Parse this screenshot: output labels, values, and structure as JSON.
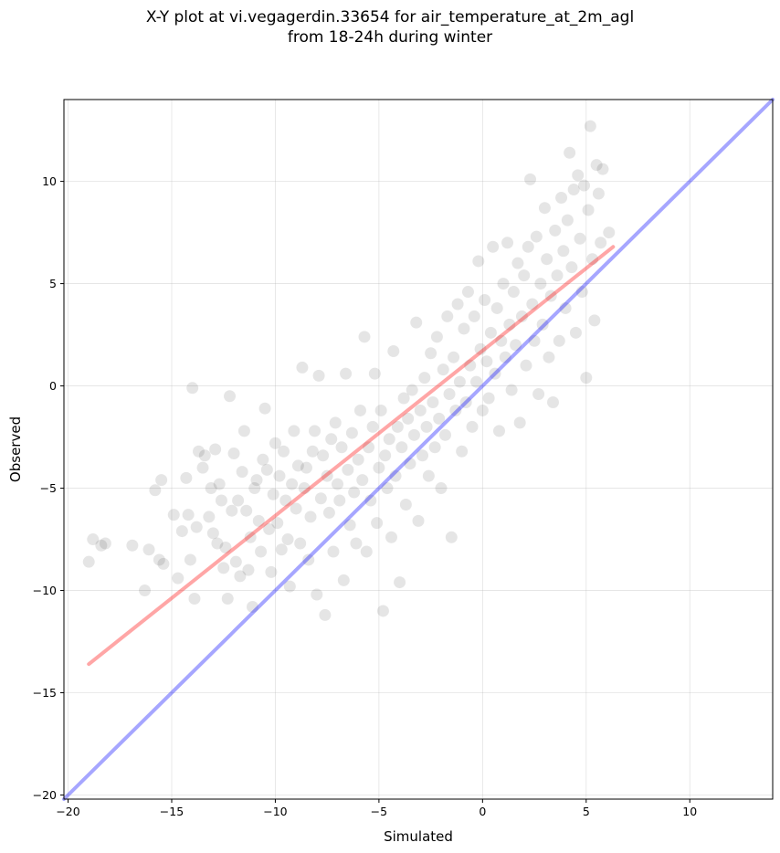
{
  "chart_data": {
    "type": "scatter",
    "title_lines": [
      "X-Y plot at vi.vegagerdin.33654 for air_temperature_at_2m_agl",
      "from 18-24h during winter"
    ],
    "xlabel": "Simulated",
    "ylabel": "Observed",
    "xlim": [
      -20.2,
      14
    ],
    "ylim": [
      -20.2,
      14
    ],
    "x_ticks": [
      -20,
      -15,
      -10,
      -5,
      0,
      5,
      10
    ],
    "y_ticks": [
      -20,
      -15,
      -10,
      -5,
      0,
      5,
      10
    ],
    "x_tick_labels": [
      "−20",
      "−15",
      "−10",
      "−5",
      "0",
      "5",
      "10"
    ],
    "y_tick_labels": [
      "−20",
      "−15",
      "−10",
      "−5",
      "0",
      "5",
      "10"
    ],
    "grid": true,
    "point_color": "#000000",
    "point_opacity": 0.1,
    "lines": [
      {
        "role": "identity",
        "color": "#0000ff",
        "x": [
          -20.2,
          14
        ],
        "y": [
          -20.2,
          14
        ]
      },
      {
        "role": "fit",
        "color": "#ff0000",
        "x": [
          -19,
          6.3
        ],
        "y": [
          -13.6,
          6.8
        ]
      }
    ],
    "points": [
      [
        -19.0,
        -8.6
      ],
      [
        -18.8,
        -7.5
      ],
      [
        -18.4,
        -7.8
      ],
      [
        -18.2,
        -7.7
      ],
      [
        -16.9,
        -7.8
      ],
      [
        -16.3,
        -10.0
      ],
      [
        -16.1,
        -8.0
      ],
      [
        -15.8,
        -5.1
      ],
      [
        -15.6,
        -8.5
      ],
      [
        -15.5,
        -4.6
      ],
      [
        -15.4,
        -8.7
      ],
      [
        -14.9,
        -6.3
      ],
      [
        -14.7,
        -9.4
      ],
      [
        -14.5,
        -7.1
      ],
      [
        -14.3,
        -4.5
      ],
      [
        -14.2,
        -6.3
      ],
      [
        -14.1,
        -8.5
      ],
      [
        -14.0,
        -0.1
      ],
      [
        -13.9,
        -10.4
      ],
      [
        -13.8,
        -6.9
      ],
      [
        -13.7,
        -3.2
      ],
      [
        -13.5,
        -4.0
      ],
      [
        -13.4,
        -3.4
      ],
      [
        -13.2,
        -6.4
      ],
      [
        -13.1,
        -5.0
      ],
      [
        -13.0,
        -7.2
      ],
      [
        -12.9,
        -3.1
      ],
      [
        -12.8,
        -7.7
      ],
      [
        -12.7,
        -4.8
      ],
      [
        -12.6,
        -5.6
      ],
      [
        -12.5,
        -8.9
      ],
      [
        -12.4,
        -7.9
      ],
      [
        -12.3,
        -10.4
      ],
      [
        -12.2,
        -0.5
      ],
      [
        -12.1,
        -6.1
      ],
      [
        -12.0,
        -3.3
      ],
      [
        -11.9,
        -8.6
      ],
      [
        -11.8,
        -5.6
      ],
      [
        -11.7,
        -9.3
      ],
      [
        -11.6,
        -4.2
      ],
      [
        -11.5,
        -2.2
      ],
      [
        -11.4,
        -6.1
      ],
      [
        -11.3,
        -9.0
      ],
      [
        -11.2,
        -7.4
      ],
      [
        -11.1,
        -10.8
      ],
      [
        -11.0,
        -5.0
      ],
      [
        -10.9,
        -4.6
      ],
      [
        -10.8,
        -6.6
      ],
      [
        -10.7,
        -8.1
      ],
      [
        -10.6,
        -3.6
      ],
      [
        -10.5,
        -1.1
      ],
      [
        -10.4,
        -4.1
      ],
      [
        -10.3,
        -7.0
      ],
      [
        -10.2,
        -9.1
      ],
      [
        -10.1,
        -5.3
      ],
      [
        -10.0,
        -2.8
      ],
      [
        -9.9,
        -6.7
      ],
      [
        -9.8,
        -4.4
      ],
      [
        -9.7,
        -8.0
      ],
      [
        -9.6,
        -3.2
      ],
      [
        -9.5,
        -5.6
      ],
      [
        -9.4,
        -7.5
      ],
      [
        -9.3,
        -9.8
      ],
      [
        -9.2,
        -4.8
      ],
      [
        -9.1,
        -2.2
      ],
      [
        -9.0,
        -6.0
      ],
      [
        -8.9,
        -3.9
      ],
      [
        -8.8,
        -7.7
      ],
      [
        -8.7,
        0.9
      ],
      [
        -8.6,
        -5.0
      ],
      [
        -8.5,
        -4.0
      ],
      [
        -8.4,
        -8.5
      ],
      [
        -8.3,
        -6.4
      ],
      [
        -8.2,
        -3.2
      ],
      [
        -8.1,
        -2.2
      ],
      [
        -8.0,
        -10.2
      ],
      [
        -7.9,
        0.5
      ],
      [
        -7.8,
        -5.5
      ],
      [
        -7.7,
        -3.4
      ],
      [
        -7.6,
        -11.2
      ],
      [
        -7.5,
        -4.4
      ],
      [
        -7.4,
        -6.2
      ],
      [
        -7.3,
        -2.6
      ],
      [
        -7.2,
        -8.1
      ],
      [
        -7.1,
        -1.8
      ],
      [
        -7.0,
        -4.8
      ],
      [
        -6.9,
        -5.6
      ],
      [
        -6.8,
        -3.0
      ],
      [
        -6.7,
        -9.5
      ],
      [
        -6.6,
        0.6
      ],
      [
        -6.5,
        -4.1
      ],
      [
        -6.4,
        -6.8
      ],
      [
        -6.3,
        -2.3
      ],
      [
        -6.2,
        -5.2
      ],
      [
        -6.1,
        -7.7
      ],
      [
        -6.0,
        -3.6
      ],
      [
        -5.9,
        -1.2
      ],
      [
        -5.8,
        -4.6
      ],
      [
        -5.7,
        2.4
      ],
      [
        -5.6,
        -8.1
      ],
      [
        -5.5,
        -3.0
      ],
      [
        -5.4,
        -5.6
      ],
      [
        -5.3,
        -2.0
      ],
      [
        -5.2,
        0.6
      ],
      [
        -5.1,
        -6.7
      ],
      [
        -5.0,
        -4.0
      ],
      [
        -4.9,
        -1.2
      ],
      [
        -4.8,
        -11.0
      ],
      [
        -4.7,
        -3.4
      ],
      [
        -4.6,
        -5.0
      ],
      [
        -4.5,
        -2.6
      ],
      [
        -4.4,
        -7.4
      ],
      [
        -4.3,
        1.7
      ],
      [
        -4.2,
        -4.4
      ],
      [
        -4.1,
        -2.0
      ],
      [
        -4.0,
        -9.6
      ],
      [
        -3.9,
        -3.0
      ],
      [
        -3.8,
        -0.6
      ],
      [
        -3.7,
        -5.8
      ],
      [
        -3.6,
        -1.6
      ],
      [
        -3.5,
        -3.8
      ],
      [
        -3.4,
        -0.2
      ],
      [
        -3.3,
        -2.4
      ],
      [
        -3.2,
        3.1
      ],
      [
        -3.1,
        -6.6
      ],
      [
        -3.0,
        -1.2
      ],
      [
        -2.9,
        -3.4
      ],
      [
        -2.8,
        0.4
      ],
      [
        -2.7,
        -2.0
      ],
      [
        -2.6,
        -4.4
      ],
      [
        -2.5,
        1.6
      ],
      [
        -2.4,
        -0.8
      ],
      [
        -2.3,
        -3.0
      ],
      [
        -2.2,
        2.4
      ],
      [
        -2.1,
        -1.6
      ],
      [
        -2.0,
        -5.0
      ],
      [
        -1.9,
        0.8
      ],
      [
        -1.8,
        -2.4
      ],
      [
        -1.7,
        3.4
      ],
      [
        -1.6,
        -0.4
      ],
      [
        -1.5,
        -7.4
      ],
      [
        -1.4,
        1.4
      ],
      [
        -1.3,
        -1.2
      ],
      [
        -1.2,
        4.0
      ],
      [
        -1.1,
        0.2
      ],
      [
        -1.0,
        -3.2
      ],
      [
        -0.9,
        2.8
      ],
      [
        -0.8,
        -0.8
      ],
      [
        -0.7,
        4.6
      ],
      [
        -0.6,
        1.0
      ],
      [
        -0.5,
        -2.0
      ],
      [
        -0.4,
        3.4
      ],
      [
        -0.3,
        0.2
      ],
      [
        -0.2,
        6.1
      ],
      [
        -0.1,
        1.8
      ],
      [
        0.0,
        -1.2
      ],
      [
        0.1,
        4.2
      ],
      [
        0.2,
        1.2
      ],
      [
        0.3,
        -0.6
      ],
      [
        0.4,
        2.6
      ],
      [
        0.5,
        6.8
      ],
      [
        0.6,
        0.6
      ],
      [
        0.7,
        3.8
      ],
      [
        0.8,
        -2.2
      ],
      [
        0.9,
        2.2
      ],
      [
        1.0,
        5.0
      ],
      [
        1.1,
        1.4
      ],
      [
        1.2,
        7.0
      ],
      [
        1.3,
        3.0
      ],
      [
        1.4,
        -0.2
      ],
      [
        1.5,
        4.6
      ],
      [
        1.6,
        2.0
      ],
      [
        1.7,
        6.0
      ],
      [
        1.8,
        -1.8
      ],
      [
        1.9,
        3.4
      ],
      [
        2.0,
        5.4
      ],
      [
        2.1,
        1.0
      ],
      [
        2.2,
        6.8
      ],
      [
        2.3,
        10.1
      ],
      [
        2.4,
        4.0
      ],
      [
        2.5,
        2.2
      ],
      [
        2.6,
        7.3
      ],
      [
        2.7,
        -0.4
      ],
      [
        2.8,
        5.0
      ],
      [
        2.9,
        3.0
      ],
      [
        3.0,
        8.7
      ],
      [
        3.1,
        6.2
      ],
      [
        3.2,
        1.4
      ],
      [
        3.3,
        4.4
      ],
      [
        3.4,
        -0.8
      ],
      [
        3.5,
        7.6
      ],
      [
        3.6,
        5.4
      ],
      [
        3.7,
        2.2
      ],
      [
        3.8,
        9.2
      ],
      [
        3.9,
        6.6
      ],
      [
        4.0,
        3.8
      ],
      [
        4.1,
        8.1
      ],
      [
        4.2,
        11.4
      ],
      [
        4.3,
        5.8
      ],
      [
        4.4,
        9.6
      ],
      [
        4.5,
        2.6
      ],
      [
        4.6,
        10.3
      ],
      [
        4.7,
        7.2
      ],
      [
        4.8,
        4.6
      ],
      [
        4.9,
        9.8
      ],
      [
        5.0,
        0.4
      ],
      [
        5.1,
        8.6
      ],
      [
        5.2,
        12.7
      ],
      [
        5.3,
        6.2
      ],
      [
        5.4,
        3.2
      ],
      [
        5.5,
        10.8
      ],
      [
        5.6,
        9.4
      ],
      [
        5.7,
        7.0
      ],
      [
        5.8,
        10.6
      ],
      [
        6.1,
        7.5
      ]
    ]
  }
}
